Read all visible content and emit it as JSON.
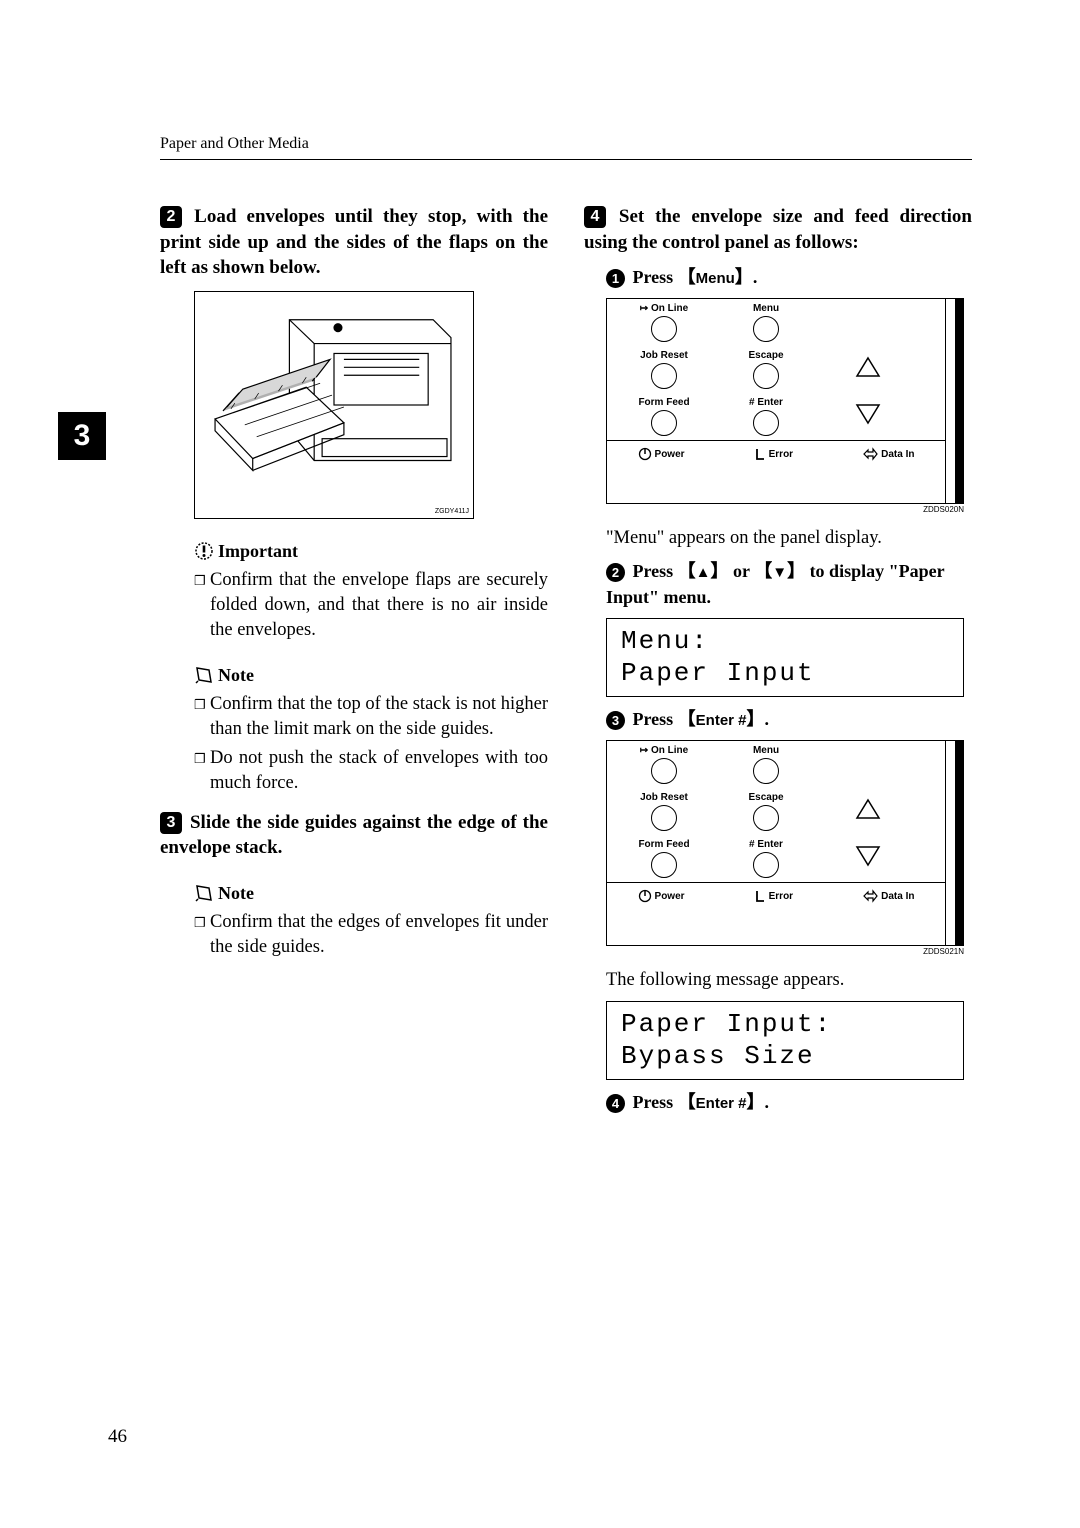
{
  "header": "Paper and Other Media",
  "side_tab": "3",
  "page_number": "46",
  "left": {
    "step2": {
      "num": "2",
      "text": "Load envelopes until they stop, with the print side up and the sides of the flaps on the left as shown below."
    },
    "fig_code": "ZGDY411J",
    "important_label": "Important",
    "important_item": "Confirm that the envelope flaps are securely folded down, and that there is no air inside the envelopes.",
    "note1_label": "Note",
    "note1_item1": "Confirm that the top of the stack is not higher than the limit mark on the side guides.",
    "note1_item2": "Do not push the stack of envelopes with too much force.",
    "step3": {
      "num": "3",
      "text": "Slide the side guides against the edge of the envelope stack."
    },
    "note2_label": "Note",
    "note2_item": "Confirm that the edges of envelopes fit under the side guides."
  },
  "right": {
    "step4": {
      "num": "4",
      "text": "Set the envelope size and feed direction using the control panel as follows:"
    },
    "sub1": {
      "num": "1",
      "prefix": "Press ",
      "btn": "Menu",
      "suffix": "."
    },
    "panel1_code": "ZDDS020N",
    "after_panel1": "\"Menu\" appears on the panel display.",
    "sub2": {
      "num": "2",
      "text_a": "Press ",
      "text_b": " or ",
      "text_c": " to display \"Paper Input\" menu."
    },
    "lcd1_line1": "Menu:",
    "lcd1_line2": " Paper Input",
    "sub3": {
      "num": "3",
      "prefix": "Press ",
      "btn": "Enter #",
      "suffix": "."
    },
    "panel2_code": "ZDDS021N",
    "after_panel2": "The following message appears.",
    "lcd2_line1": "Paper Input:",
    "lcd2_line2": " Bypass Size",
    "sub4": {
      "num": "4",
      "prefix": "Press ",
      "btn": "Enter #",
      "suffix": "."
    },
    "panel_labels": {
      "online": "On Line",
      "menu": "Menu",
      "jobreset": "Job Reset",
      "escape": "Escape",
      "formfeed": "Form Feed",
      "enter": "Enter",
      "power": "Power",
      "error": "Error",
      "datain": "Data In"
    }
  }
}
